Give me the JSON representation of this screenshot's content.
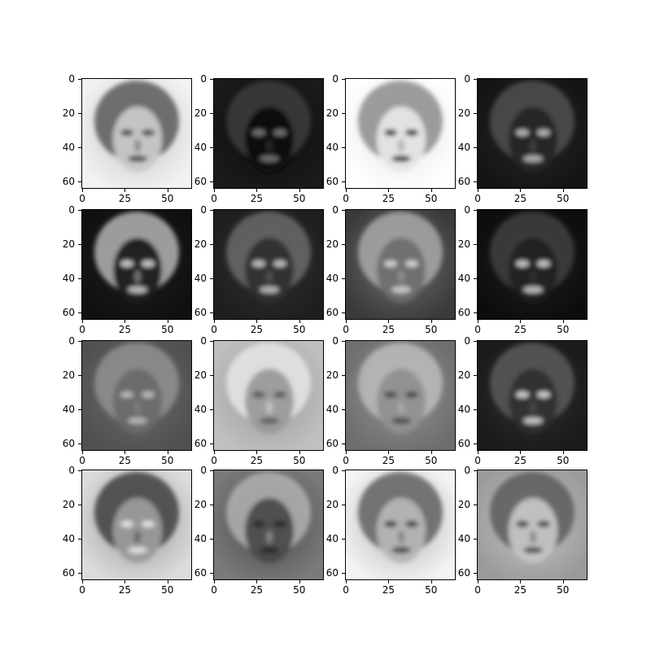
{
  "panels": [
    {
      "tone": "light",
      "palette": [
        "#f2f2f2",
        "#c8c8c8",
        "#5a5a5a",
        "#2a2a2a"
      ]
    },
    {
      "tone": "dark",
      "palette": [
        "#1a1a1a",
        "#0c0c0c",
        "#3c3c3c",
        "#8a8a8a"
      ]
    },
    {
      "tone": "light",
      "palette": [
        "#ffffff",
        "#e6e6e6",
        "#8c8c8c",
        "#0a0a0a"
      ]
    },
    {
      "tone": "dark",
      "palette": [
        "#141414",
        "#262626",
        "#505050",
        "#d8d8d8"
      ]
    },
    {
      "tone": "dark",
      "palette": [
        "#101010",
        "#1c1c1c",
        "#b4b4b4",
        "#f0f0f0"
      ]
    },
    {
      "tone": "dark",
      "palette": [
        "#1e1e1e",
        "#303030",
        "#6a6a6a",
        "#e0e0e0"
      ]
    },
    {
      "tone": "medium",
      "palette": [
        "#3a3a3a",
        "#6e6e6e",
        "#a8a8a8",
        "#e8e8e8"
      ]
    },
    {
      "tone": "dark",
      "palette": [
        "#0c0c0c",
        "#202020",
        "#404040",
        "#eeeeee"
      ]
    },
    {
      "tone": "medium",
      "palette": [
        "#505050",
        "#6a6a6a",
        "#909090",
        "#cccccc"
      ]
    },
    {
      "tone": "light",
      "palette": [
        "#c0c0c0",
        "#9a9a9a",
        "#e6e6e6",
        "#4a4a4a"
      ]
    },
    {
      "tone": "medium",
      "palette": [
        "#6e6e6e",
        "#909090",
        "#bcbcbc",
        "#3a3a3a"
      ]
    },
    {
      "tone": "dark",
      "palette": [
        "#1a1a1a",
        "#2e2e2e",
        "#5a5a5a",
        "#f4f4f4"
      ]
    },
    {
      "tone": "light",
      "palette": [
        "#dcdcdc",
        "#9c9c9c",
        "#3e3e3e",
        "#f4f4f4"
      ]
    },
    {
      "tone": "medium",
      "palette": [
        "#7a7a7a",
        "#4a4a4a",
        "#b0b0b0",
        "#202020"
      ]
    },
    {
      "tone": "light",
      "palette": [
        "#f4f4f4",
        "#b6b6b6",
        "#606060",
        "#2a2a2a"
      ]
    },
    {
      "tone": "medium",
      "palette": [
        "#9a9a9a",
        "#c4c4c4",
        "#5c5c5c",
        "#2c2c2c"
      ]
    }
  ],
  "axes": {
    "x_ticks": [
      0,
      25,
      50
    ],
    "y_ticks": [
      0,
      20,
      40,
      60
    ],
    "x_range": [
      -0.5,
      63.5
    ],
    "y_range": [
      -0.5,
      63.5
    ]
  }
}
